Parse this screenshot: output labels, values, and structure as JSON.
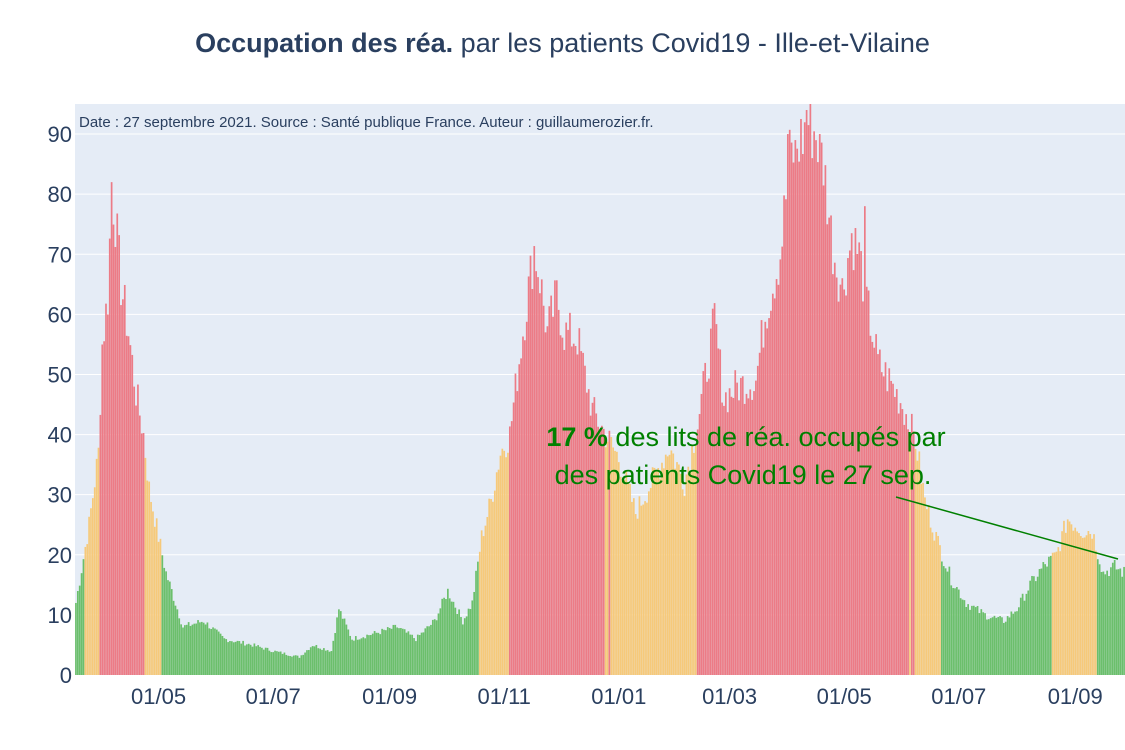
{
  "title": {
    "bold": "Occupation des réa.",
    "rest": " par les patients Covid19 - Ille-et-Vilaine"
  },
  "chart_data": {
    "type": "bar",
    "title": "Occupation des réa. par les patients Covid19 - Ille-et-Vilaine",
    "xlabel": "",
    "ylabel": "",
    "x_start": "2020-03-18",
    "x_end": "2021-09-27",
    "ylim": [
      0,
      95
    ],
    "yticks": [
      0,
      10,
      20,
      30,
      40,
      50,
      60,
      70,
      80,
      90
    ],
    "xticks": [
      {
        "date": "2020-05-01",
        "label": "01/05"
      },
      {
        "date": "2020-07-01",
        "label": "01/07"
      },
      {
        "date": "2020-09-01",
        "label": "01/09"
      },
      {
        "date": "2020-11-01",
        "label": "01/11"
      },
      {
        "date": "2021-01-01",
        "label": "01/01"
      },
      {
        "date": "2021-03-01",
        "label": "01/03"
      },
      {
        "date": "2021-05-01",
        "label": "01/05"
      },
      {
        "date": "2021-07-01",
        "label": "01/07"
      },
      {
        "date": "2021-09-01",
        "label": "01/09"
      }
    ],
    "series_keypoints": [
      [
        "2020-03-18",
        12
      ],
      [
        "2020-03-25",
        25
      ],
      [
        "2020-03-30",
        37
      ],
      [
        "2020-04-01",
        55
      ],
      [
        "2020-04-04",
        63
      ],
      [
        "2020-04-06",
        81
      ],
      [
        "2020-04-08",
        76
      ],
      [
        "2020-04-11",
        65
      ],
      [
        "2020-04-15",
        57
      ],
      [
        "2020-04-19",
        47
      ],
      [
        "2020-04-23",
        40
      ],
      [
        "2020-04-26",
        31
      ],
      [
        "2020-05-01",
        23
      ],
      [
        "2020-05-05",
        17
      ],
      [
        "2020-05-10",
        12
      ],
      [
        "2020-05-14",
        8
      ],
      [
        "2020-05-25",
        9
      ],
      [
        "2020-06-05",
        6
      ],
      [
        "2020-06-20",
        5
      ],
      [
        "2020-07-01",
        4
      ],
      [
        "2020-07-15",
        3
      ],
      [
        "2020-07-22",
        5
      ],
      [
        "2020-08-01",
        4
      ],
      [
        "2020-08-05",
        11
      ],
      [
        "2020-08-12",
        6
      ],
      [
        "2020-08-25",
        7
      ],
      [
        "2020-09-05",
        8
      ],
      [
        "2020-09-15",
        6
      ],
      [
        "2020-09-25",
        9
      ],
      [
        "2020-10-02",
        14
      ],
      [
        "2020-10-10",
        9
      ],
      [
        "2020-10-15",
        12
      ],
      [
        "2020-10-20",
        23
      ],
      [
        "2020-10-25",
        29
      ],
      [
        "2020-10-30",
        37
      ],
      [
        "2020-11-04",
        40
      ],
      [
        "2020-11-08",
        50
      ],
      [
        "2020-11-13",
        62
      ],
      [
        "2020-11-17",
        71
      ],
      [
        "2020-11-20",
        66
      ],
      [
        "2020-11-24",
        57
      ],
      [
        "2020-11-29",
        63
      ],
      [
        "2020-12-03",
        57
      ],
      [
        "2020-12-10",
        56
      ],
      [
        "2020-12-18",
        44
      ],
      [
        "2020-12-25",
        40
      ],
      [
        "2021-01-01",
        36
      ],
      [
        "2021-01-10",
        27
      ],
      [
        "2021-01-20",
        33
      ],
      [
        "2021-01-28",
        38
      ],
      [
        "2021-02-05",
        32
      ],
      [
        "2021-02-12",
        42
      ],
      [
        "2021-02-18",
        53
      ],
      [
        "2021-02-21",
        59
      ],
      [
        "2021-02-26",
        46
      ],
      [
        "2021-03-05",
        48
      ],
      [
        "2021-03-15",
        49
      ],
      [
        "2021-03-20",
        60
      ],
      [
        "2021-03-28",
        70
      ],
      [
        "2021-04-02",
        86
      ],
      [
        "2021-04-08",
        89
      ],
      [
        "2021-04-12",
        92
      ],
      [
        "2021-04-16",
        90
      ],
      [
        "2021-04-20",
        85
      ],
      [
        "2021-04-25",
        71
      ],
      [
        "2021-04-30",
        64
      ],
      [
        "2021-05-05",
        73
      ],
      [
        "2021-05-09",
        70
      ],
      [
        "2021-05-13",
        62
      ],
      [
        "2021-05-19",
        52
      ],
      [
        "2021-05-25",
        49
      ],
      [
        "2021-06-01",
        45
      ],
      [
        "2021-06-08",
        39
      ],
      [
        "2021-06-13",
        29
      ],
      [
        "2021-06-20",
        22
      ],
      [
        "2021-06-27",
        16
      ],
      [
        "2021-07-05",
        12
      ],
      [
        "2021-07-15",
        10
      ],
      [
        "2021-07-25",
        9
      ],
      [
        "2021-08-01",
        11
      ],
      [
        "2021-08-08",
        15
      ],
      [
        "2021-08-15",
        18
      ],
      [
        "2021-08-22",
        20
      ],
      [
        "2021-08-28",
        26
      ],
      [
        "2021-09-01",
        25
      ],
      [
        "2021-09-05",
        24
      ],
      [
        "2021-09-10",
        24
      ],
      [
        "2021-09-16",
        17
      ],
      [
        "2021-09-22",
        18
      ],
      [
        "2021-09-27",
        17
      ]
    ],
    "spikes": [
      [
        "2020-04-06",
        82
      ],
      [
        "2021-04-01",
        90
      ],
      [
        "2021-04-05",
        89
      ],
      [
        "2021-04-11",
        94
      ],
      [
        "2021-04-13",
        95
      ],
      [
        "2021-04-18",
        90
      ],
      [
        "2021-05-12",
        78
      ]
    ],
    "color_rule": {
      "green_max": 20,
      "yellow_max": 40,
      "green": "#6bbf6b",
      "yellow": "#f6c97a",
      "red": "#ec7b86",
      "note": "bar color reflects share of ICU beds occupied (green low, orange medium, red high)"
    },
    "annotations": {
      "date_source": "Date : 27 septembre 2021. Source : Santé publique France. Auteur : guillaumerozier.fr.",
      "pct_value": "17  %",
      "pct_text": " des lits de réa. occupés par",
      "pct_line2": "des patients Covid19 le 27 sep."
    }
  },
  "colors": {
    "plot_bg": "#e5ecf6",
    "grid": "#ffffff",
    "title": "#2a3f5f",
    "tick_label": "#2a3f5f",
    "annotation": "#008000"
  }
}
